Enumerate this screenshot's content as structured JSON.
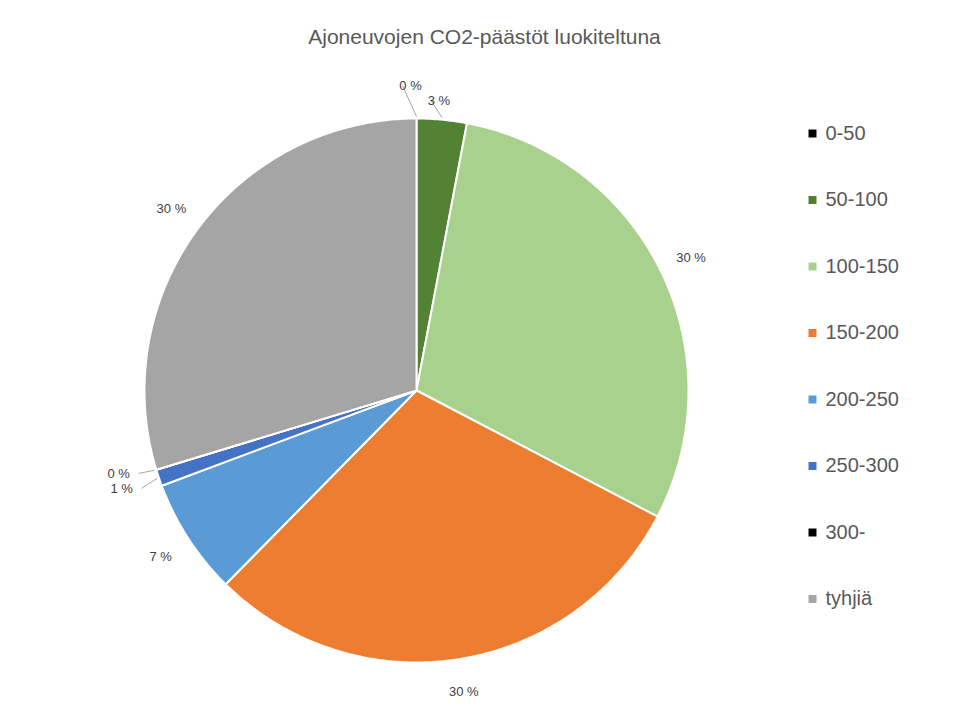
{
  "chart_data": {
    "type": "pie",
    "title": "Ajoneuvojen CO2-päästöt luokiteltuna",
    "categories": [
      "0-50",
      "50-100",
      "100-150",
      "150-200",
      "200-250",
      "250-300",
      "300-",
      "tyhjiä"
    ],
    "values": [
      0,
      3,
      30,
      30,
      7,
      1,
      0,
      30
    ],
    "value_labels": [
      "0 %",
      "3 %",
      "30 %",
      "30 %",
      "7 %",
      "1 %",
      "0 %",
      "30 %"
    ],
    "colors": [
      "#000000",
      "#548235",
      "#a9d18e",
      "#ed7d31",
      "#5b9bd5",
      "#4472c4",
      "#000000",
      "#a5a5a5"
    ],
    "data_labels": true,
    "legend": "right"
  }
}
